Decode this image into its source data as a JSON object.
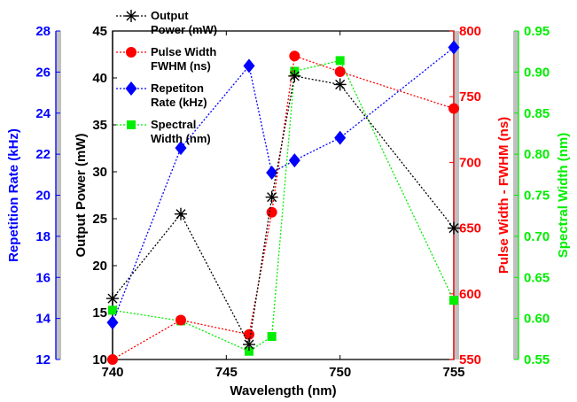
{
  "chart_data": {
    "type": "line",
    "x_label": "Wavelength (nm)",
    "x_range": [
      740,
      755
    ],
    "x_ticks": [
      740,
      745,
      750,
      755
    ],
    "axes": [
      {
        "id": "power",
        "label": "Output Power (mW)",
        "color": "#000000",
        "range": [
          10,
          45
        ],
        "ticks": [
          10,
          15,
          20,
          25,
          30,
          35,
          40,
          45
        ],
        "side": "left"
      },
      {
        "id": "rate",
        "label": "Repetition Rate (kHz)",
        "color": "#0000ff",
        "range": [
          12,
          28
        ],
        "ticks": [
          12,
          14,
          16,
          18,
          20,
          22,
          24,
          26,
          28
        ],
        "side": "far-left"
      },
      {
        "id": "width",
        "label": "Pulse Width - FWHM (ns)",
        "color": "#ff0000",
        "range": [
          550,
          800
        ],
        "ticks": [
          550,
          600,
          650,
          700,
          750,
          800
        ],
        "side": "right"
      },
      {
        "id": "spectral",
        "label": "Spectral Width (nm)",
        "color": "#00ee00",
        "range": [
          0.55,
          0.95
        ],
        "ticks": [
          0.55,
          0.6,
          0.65,
          0.7,
          0.75,
          0.8,
          0.85,
          0.9,
          0.95
        ],
        "side": "far-right"
      }
    ],
    "series": [
      {
        "name": "Output Power (mW)",
        "axis": "power",
        "marker": "star",
        "color": "#000000",
        "x": [
          740,
          743,
          746,
          747,
          748,
          750,
          755
        ],
        "y": [
          16.5,
          25.5,
          11.6,
          27.3,
          40.2,
          39.3,
          24.0
        ]
      },
      {
        "name": "Pulse Width FWHM (ns)",
        "axis": "width",
        "marker": "circle",
        "color": "#ff0000",
        "x": [
          740,
          743,
          746,
          747,
          748,
          750,
          755
        ],
        "y": [
          550,
          580,
          569,
          662,
          781,
          769,
          741
        ]
      },
      {
        "name": "Repetiton Rate (kHz)",
        "axis": "rate",
        "marker": "diamond",
        "color": "#0000ff",
        "x": [
          740,
          743,
          746,
          747,
          748,
          750,
          755
        ],
        "y": [
          13.8,
          22.3,
          26.3,
          21.1,
          21.7,
          22.8,
          27.2
        ]
      },
      {
        "name": "Spectral Width (nm)",
        "axis": "spectral",
        "marker": "square",
        "color": "#00ee00",
        "x": [
          740,
          743,
          746,
          747,
          748,
          750,
          755
        ],
        "y": [
          0.61,
          0.597,
          0.56,
          0.578,
          0.901,
          0.914,
          0.622
        ]
      }
    ],
    "legend": {
      "placement": "top-left",
      "entries": [
        {
          "lines": [
            "Output",
            "Power (mW)"
          ]
        },
        {
          "lines": [
            "Pulse Width",
            "FWHM (ns)"
          ]
        },
        {
          "lines": [
            "Repetiton",
            "Rate (kHz)"
          ]
        },
        {
          "lines": [
            "Spectral",
            "Width (nm)"
          ]
        }
      ]
    }
  },
  "colors": {
    "power": "#000000",
    "rate": "#0000ff",
    "width": "#ff0000",
    "spectral": "#00ee00",
    "spine_gray": "#c0c0c0"
  }
}
